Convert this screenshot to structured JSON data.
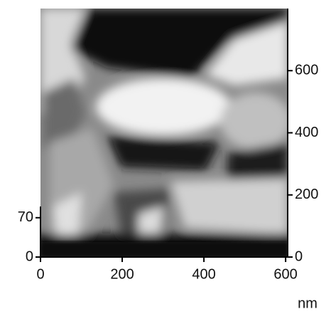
{
  "chart_data": {
    "type": "image",
    "xlabel": "nm",
    "xlim": [
      0,
      605
    ],
    "xticks": [
      0,
      200,
      400,
      600
    ],
    "ylim": [
      0,
      800
    ],
    "yticks": [
      0,
      200,
      400,
      600
    ],
    "zlim": [
      0,
      90
    ],
    "zticks": [
      0,
      70
    ]
  }
}
